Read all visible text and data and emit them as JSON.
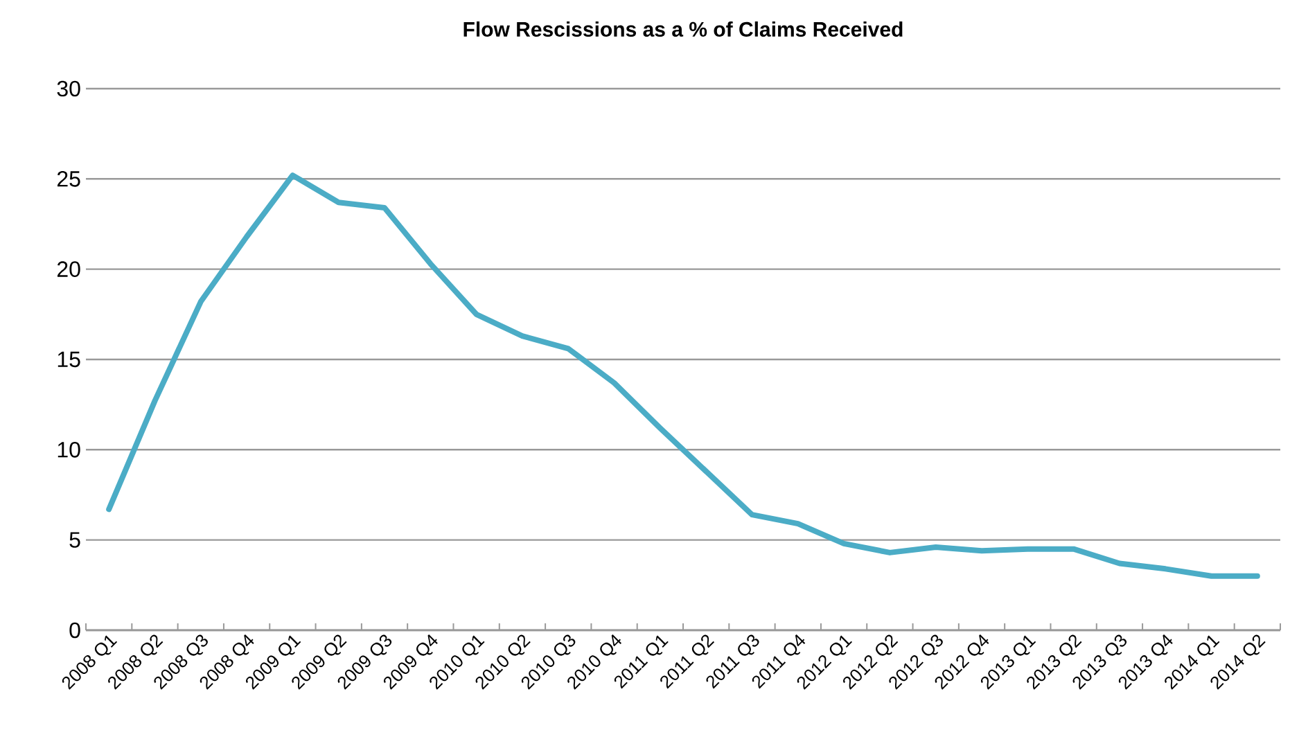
{
  "chart_data": {
    "type": "line",
    "title": "Flow Rescissions as a % of Claims Received",
    "categories": [
      "2008 Q1",
      "2008 Q2",
      "2008 Q3",
      "2008 Q4",
      "2009 Q1",
      "2009 Q2",
      "2009 Q3",
      "2009 Q4",
      "2010 Q1",
      "2010 Q2",
      "2010 Q3",
      "2010 Q4",
      "2011 Q1",
      "2011 Q2",
      "2011 Q3",
      "2011 Q4",
      "2012 Q1",
      "2012 Q2",
      "2012 Q3",
      "2012 Q4",
      "2013 Q1",
      "2013 Q2",
      "2013 Q3",
      "2013 Q4",
      "2014 Q1",
      "2014 Q2"
    ],
    "values": [
      6.7,
      12.7,
      18.2,
      21.8,
      25.2,
      23.7,
      23.4,
      20.3,
      17.5,
      16.3,
      15.6,
      13.7,
      11.2,
      8.8,
      6.4,
      5.9,
      4.8,
      4.3,
      4.6,
      4.4,
      4.5,
      4.5,
      3.7,
      3.4,
      3.0,
      3.0
    ],
    "color": "#4bacc6",
    "ylim": [
      0,
      30
    ],
    "yticks": [
      0,
      5,
      10,
      15,
      20,
      25,
      30
    ],
    "grid": "y"
  }
}
